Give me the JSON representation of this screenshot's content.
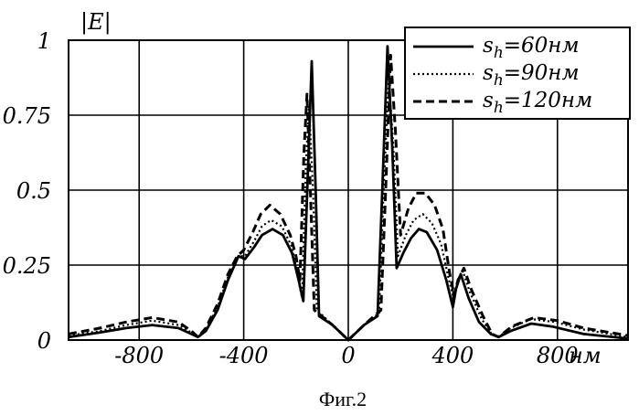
{
  "chart_data": {
    "type": "line",
    "ylabel": "|E|",
    "xunit": "нм",
    "caption": "Фиг.2",
    "xlim": [
      -1070,
      1070
    ],
    "ylim": [
      0,
      1
    ],
    "xticks": [
      -800,
      -400,
      0,
      400,
      800
    ],
    "xtick_labels": [
      "-800",
      "-400",
      "0",
      "400",
      "800"
    ],
    "yticks": [
      0,
      0.25,
      0.5,
      0.75,
      1
    ],
    "ytick_labels": [
      "0",
      "0.25",
      "0.5",
      "0.75",
      "1"
    ],
    "grid": true,
    "legend_position": "top-right",
    "series": [
      {
        "legend_main": "s",
        "legend_sub": "h",
        "legend_value": "=60нм",
        "style": "solid",
        "points": [
          [
            -1070,
            0.01
          ],
          [
            -950,
            0.025
          ],
          [
            -850,
            0.04
          ],
          [
            -750,
            0.05
          ],
          [
            -650,
            0.04
          ],
          [
            -600,
            0.02
          ],
          [
            -575,
            0.01
          ],
          [
            -545,
            0.03
          ],
          [
            -500,
            0.1
          ],
          [
            -460,
            0.2
          ],
          [
            -420,
            0.28
          ],
          [
            -395,
            0.27
          ],
          [
            -360,
            0.31
          ],
          [
            -330,
            0.35
          ],
          [
            -290,
            0.37
          ],
          [
            -250,
            0.35
          ],
          [
            -215,
            0.29
          ],
          [
            -190,
            0.2
          ],
          [
            -172,
            0.13
          ],
          [
            -155,
            0.55
          ],
          [
            -140,
            0.93
          ],
          [
            -125,
            0.5
          ],
          [
            -112,
            0.08
          ],
          [
            -60,
            0.05
          ],
          [
            0,
            0
          ],
          [
            60,
            0.05
          ],
          [
            112,
            0.08
          ],
          [
            130,
            0.5
          ],
          [
            150,
            0.98
          ],
          [
            168,
            0.65
          ],
          [
            185,
            0.24
          ],
          [
            210,
            0.29
          ],
          [
            240,
            0.34
          ],
          [
            270,
            0.37
          ],
          [
            300,
            0.36
          ],
          [
            340,
            0.3
          ],
          [
            375,
            0.2
          ],
          [
            400,
            0.11
          ],
          [
            412,
            0.17
          ],
          [
            430,
            0.22
          ],
          [
            460,
            0.14
          ],
          [
            500,
            0.06
          ],
          [
            545,
            0.02
          ],
          [
            575,
            0.01
          ],
          [
            620,
            0.03
          ],
          [
            700,
            0.055
          ],
          [
            780,
            0.045
          ],
          [
            900,
            0.02
          ],
          [
            1070,
            0.005
          ]
        ]
      },
      {
        "legend_main": "s",
        "legend_sub": "h",
        "legend_value": "=90нм",
        "style": "dotted",
        "points": [
          [
            -1070,
            0.015
          ],
          [
            -950,
            0.03
          ],
          [
            -850,
            0.05
          ],
          [
            -750,
            0.065
          ],
          [
            -650,
            0.05
          ],
          [
            -600,
            0.025
          ],
          [
            -575,
            0.01
          ],
          [
            -545,
            0.035
          ],
          [
            -500,
            0.11
          ],
          [
            -460,
            0.21
          ],
          [
            -420,
            0.28
          ],
          [
            -395,
            0.28
          ],
          [
            -360,
            0.33
          ],
          [
            -330,
            0.38
          ],
          [
            -295,
            0.4
          ],
          [
            -255,
            0.38
          ],
          [
            -215,
            0.31
          ],
          [
            -195,
            0.22
          ],
          [
            -177,
            0.14
          ],
          [
            -162,
            0.6
          ],
          [
            -150,
            0.78
          ],
          [
            -135,
            0.5
          ],
          [
            -120,
            0.1
          ],
          [
            -60,
            0.05
          ],
          [
            0,
            0
          ],
          [
            60,
            0.05
          ],
          [
            118,
            0.09
          ],
          [
            135,
            0.5
          ],
          [
            155,
            0.87
          ],
          [
            172,
            0.65
          ],
          [
            190,
            0.28
          ],
          [
            220,
            0.35
          ],
          [
            250,
            0.4
          ],
          [
            285,
            0.42
          ],
          [
            320,
            0.39
          ],
          [
            355,
            0.32
          ],
          [
            385,
            0.2
          ],
          [
            403,
            0.14
          ],
          [
            418,
            0.2
          ],
          [
            438,
            0.23
          ],
          [
            465,
            0.16
          ],
          [
            510,
            0.07
          ],
          [
            548,
            0.02
          ],
          [
            575,
            0.01
          ],
          [
            620,
            0.04
          ],
          [
            700,
            0.07
          ],
          [
            790,
            0.06
          ],
          [
            900,
            0.035
          ],
          [
            1070,
            0.01
          ]
        ]
      },
      {
        "legend_main": "s",
        "legend_sub": "h",
        "legend_value": "=120нм",
        "style": "dashed",
        "points": [
          [
            -1070,
            0.02
          ],
          [
            -950,
            0.04
          ],
          [
            -850,
            0.06
          ],
          [
            -750,
            0.075
          ],
          [
            -650,
            0.06
          ],
          [
            -600,
            0.03
          ],
          [
            -575,
            0.01
          ],
          [
            -545,
            0.04
          ],
          [
            -500,
            0.12
          ],
          [
            -460,
            0.22
          ],
          [
            -425,
            0.28
          ],
          [
            -400,
            0.3
          ],
          [
            -365,
            0.36
          ],
          [
            -335,
            0.42
          ],
          [
            -300,
            0.45
          ],
          [
            -260,
            0.42
          ],
          [
            -222,
            0.35
          ],
          [
            -200,
            0.28
          ],
          [
            -185,
            0.2
          ],
          [
            -170,
            0.62
          ],
          [
            -158,
            0.82
          ],
          [
            -145,
            0.5
          ],
          [
            -130,
            0.1
          ],
          [
            -60,
            0.05
          ],
          [
            0,
            0
          ],
          [
            60,
            0.05
          ],
          [
            125,
            0.1
          ],
          [
            143,
            0.5
          ],
          [
            162,
            0.95
          ],
          [
            180,
            0.7
          ],
          [
            200,
            0.35
          ],
          [
            230,
            0.44
          ],
          [
            260,
            0.49
          ],
          [
            295,
            0.49
          ],
          [
            330,
            0.45
          ],
          [
            362,
            0.37
          ],
          [
            388,
            0.22
          ],
          [
            405,
            0.15
          ],
          [
            420,
            0.2
          ],
          [
            442,
            0.24
          ],
          [
            470,
            0.17
          ],
          [
            515,
            0.08
          ],
          [
            550,
            0.02
          ],
          [
            575,
            0.01
          ],
          [
            625,
            0.045
          ],
          [
            710,
            0.075
          ],
          [
            800,
            0.065
          ],
          [
            900,
            0.04
          ],
          [
            1070,
            0.015
          ]
        ]
      }
    ]
  }
}
